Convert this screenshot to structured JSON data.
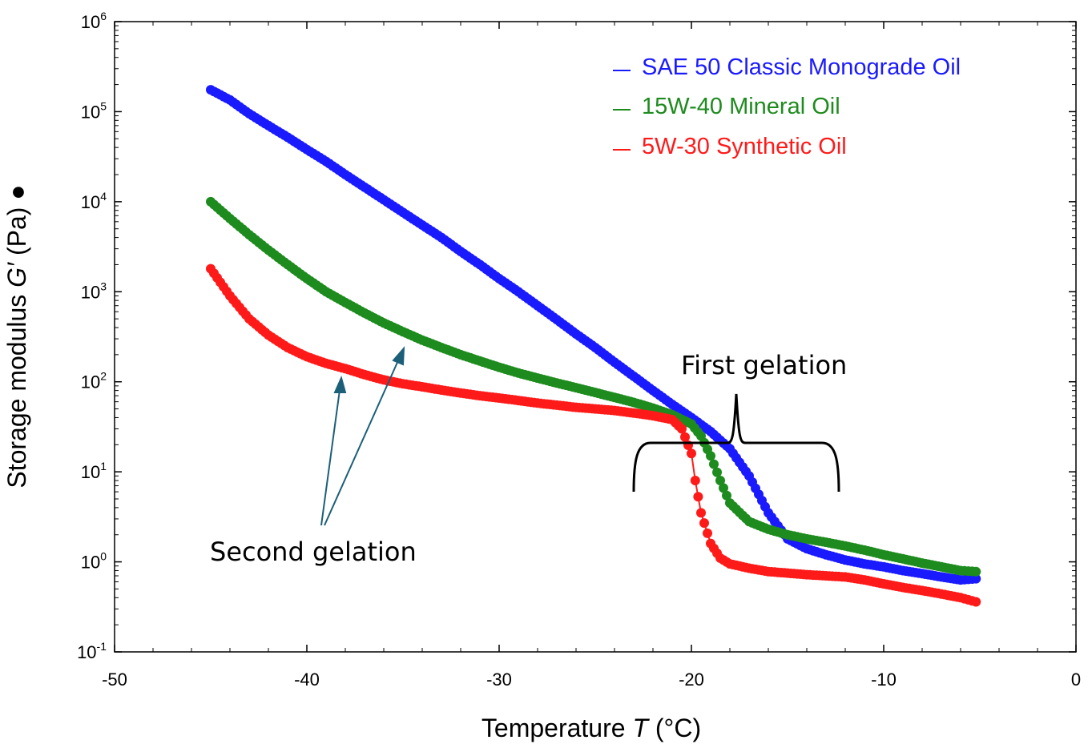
{
  "chart_data": {
    "type": "scatter",
    "xlabel": {
      "prefix": "Temperature ",
      "symbol": "T",
      "suffix": " (°C)"
    },
    "ylabel": {
      "prefix": "Storage modulus ",
      "symbol": "G′",
      "suffix": " (Pa) ●"
    },
    "x_ticks": [
      "-50",
      "-40",
      "-30",
      "-20",
      "-10",
      "0"
    ],
    "y_ticks": [
      {
        "base": "10",
        "exp": "-1"
      },
      {
        "base": "10",
        "exp": "0"
      },
      {
        "base": "10",
        "exp": "1"
      },
      {
        "base": "10",
        "exp": "2"
      },
      {
        "base": "10",
        "exp": "3"
      },
      {
        "base": "10",
        "exp": "4"
      },
      {
        "base": "10",
        "exp": "5"
      },
      {
        "base": "10",
        "exp": "6"
      }
    ],
    "xlim": [
      -50,
      0
    ],
    "ylim": [
      0.1,
      1000000
    ],
    "y_scale": "log",
    "grid": false,
    "legend_position": "top-right",
    "series": [
      {
        "name": "SAE 50 Classic Monograde Oil",
        "color": "#1a1aff",
        "points": [
          [
            -45,
            175000
          ],
          [
            -44,
            135000
          ],
          [
            -43,
            95000
          ],
          [
            -42,
            70000
          ],
          [
            -41,
            52000
          ],
          [
            -40,
            38000
          ],
          [
            -39,
            28000
          ],
          [
            -38,
            20000
          ],
          [
            -37,
            14500
          ],
          [
            -36,
            10500
          ],
          [
            -35,
            7600
          ],
          [
            -34,
            5500
          ],
          [
            -33,
            4000
          ],
          [
            -32,
            2800
          ],
          [
            -31,
            2000
          ],
          [
            -30,
            1400
          ],
          [
            -29,
            1000
          ],
          [
            -28,
            700
          ],
          [
            -27,
            490
          ],
          [
            -26,
            340
          ],
          [
            -25,
            240
          ],
          [
            -24,
            165
          ],
          [
            -23,
            115
          ],
          [
            -22,
            80
          ],
          [
            -21,
            56
          ],
          [
            -20,
            40
          ],
          [
            -19,
            28
          ],
          [
            -18,
            18
          ],
          [
            -17,
            9
          ],
          [
            -16,
            3.5
          ],
          [
            -15,
            1.8
          ],
          [
            -14,
            1.4
          ],
          [
            -13,
            1.2
          ],
          [
            -12,
            1.05
          ],
          [
            -11,
            0.95
          ],
          [
            -10,
            0.88
          ],
          [
            -9,
            0.8
          ],
          [
            -8,
            0.74
          ],
          [
            -7,
            0.68
          ],
          [
            -6,
            0.63
          ],
          [
            -5.2,
            0.65
          ]
        ]
      },
      {
        "name": "15W-40 Mineral Oil",
        "color": "#1e8b1e",
        "points": [
          [
            -45,
            10000
          ],
          [
            -44,
            6500
          ],
          [
            -43,
            4300
          ],
          [
            -42,
            2900
          ],
          [
            -41,
            2000
          ],
          [
            -40,
            1400
          ],
          [
            -39,
            1000
          ],
          [
            -38,
            760
          ],
          [
            -37,
            580
          ],
          [
            -36,
            450
          ],
          [
            -35,
            360
          ],
          [
            -34,
            290
          ],
          [
            -33,
            240
          ],
          [
            -32,
            200
          ],
          [
            -31,
            170
          ],
          [
            -30,
            145
          ],
          [
            -29,
            125
          ],
          [
            -28,
            110
          ],
          [
            -27,
            97
          ],
          [
            -26,
            86
          ],
          [
            -25,
            76
          ],
          [
            -24,
            67
          ],
          [
            -23,
            59
          ],
          [
            -22,
            51
          ],
          [
            -21,
            43
          ],
          [
            -20,
            34
          ],
          [
            -19.5,
            25
          ],
          [
            -19,
            15
          ],
          [
            -18.5,
            8
          ],
          [
            -18,
            4.5
          ],
          [
            -17,
            2.8
          ],
          [
            -16,
            2.3
          ],
          [
            -15,
            2.0
          ],
          [
            -14,
            1.8
          ],
          [
            -13,
            1.65
          ],
          [
            -12,
            1.5
          ],
          [
            -11,
            1.35
          ],
          [
            -10,
            1.2
          ],
          [
            -9,
            1.08
          ],
          [
            -8,
            0.97
          ],
          [
            -7,
            0.88
          ],
          [
            -6,
            0.8
          ],
          [
            -5.2,
            0.78
          ]
        ]
      },
      {
        "name": "5W-30 Synthetic Oil",
        "color": "#ff1a1a",
        "points": [
          [
            -45,
            1800
          ],
          [
            -44,
            900
          ],
          [
            -43,
            500
          ],
          [
            -42,
            330
          ],
          [
            -41,
            240
          ],
          [
            -40,
            190
          ],
          [
            -39,
            160
          ],
          [
            -38,
            140
          ],
          [
            -37,
            120
          ],
          [
            -36,
            105
          ],
          [
            -35,
            95
          ],
          [
            -34,
            88
          ],
          [
            -33,
            81
          ],
          [
            -32,
            75
          ],
          [
            -31,
            70
          ],
          [
            -30,
            66
          ],
          [
            -29,
            62
          ],
          [
            -28,
            58
          ],
          [
            -27,
            55
          ],
          [
            -26,
            52
          ],
          [
            -25,
            50
          ],
          [
            -24,
            48
          ],
          [
            -23,
            45
          ],
          [
            -22,
            42
          ],
          [
            -21,
            38
          ],
          [
            -20.5,
            30
          ],
          [
            -20,
            16
          ],
          [
            -19.8,
            8
          ],
          [
            -19.5,
            3.5
          ],
          [
            -19,
            1.6
          ],
          [
            -18.5,
            1.1
          ],
          [
            -18,
            0.95
          ],
          [
            -17,
            0.85
          ],
          [
            -16,
            0.78
          ],
          [
            -15,
            0.75
          ],
          [
            -14,
            0.72
          ],
          [
            -13,
            0.7
          ],
          [
            -12,
            0.68
          ],
          [
            -11,
            0.63
          ],
          [
            -10,
            0.57
          ],
          [
            -9,
            0.52
          ],
          [
            -8,
            0.48
          ],
          [
            -7,
            0.44
          ],
          [
            -6,
            0.4
          ],
          [
            -5.2,
            0.36
          ]
        ]
      }
    ],
    "annotations": [
      {
        "text": "First gelation"
      },
      {
        "text": "Second gelation"
      }
    ]
  }
}
